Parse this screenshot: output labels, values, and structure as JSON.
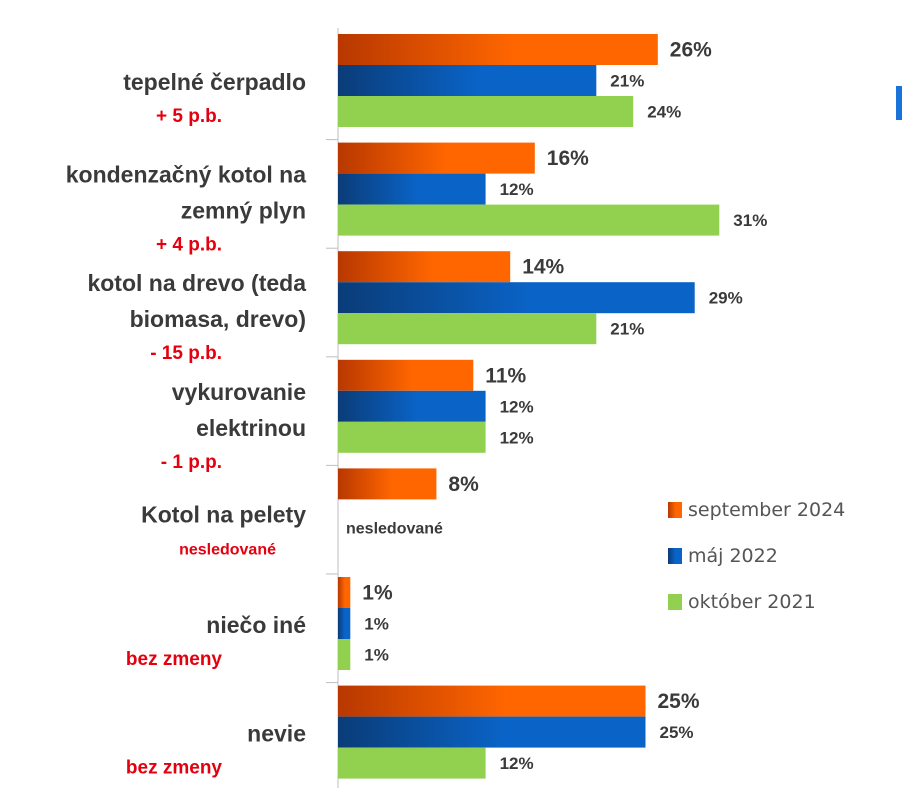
{
  "chart_data": {
    "type": "bar",
    "orientation": "horizontal",
    "categories": [
      {
        "lines": [
          "tepelné čerpadlo"
        ],
        "change": "+ 5 p.b."
      },
      {
        "lines": [
          "kondenzačný kotol na",
          "zemný plyn"
        ],
        "change": "+ 4 p.b."
      },
      {
        "lines": [
          "kotol na drevo (teda",
          "biomasa, drevo)"
        ],
        "change": "- 15 p.b."
      },
      {
        "lines": [
          "vykurovanie",
          "elektrinou"
        ],
        "change": "- 1 p.p."
      },
      {
        "lines": [
          "Kotol na pelety"
        ],
        "change": "nesledované"
      },
      {
        "lines": [
          "niečo iné"
        ],
        "change": "bez zmeny"
      },
      {
        "lines": [
          "nevie"
        ],
        "change": "bez zmeny"
      }
    ],
    "series": [
      {
        "name": "september 2024",
        "color": "#ff6600",
        "values": [
          26,
          16,
          14,
          11,
          8,
          1,
          25
        ],
        "labels": [
          "26%",
          "16%",
          "14%",
          "11%",
          "8%",
          "1%",
          "25%"
        ]
      },
      {
        "name": "máj 2022",
        "color": "#0a64c8",
        "values": [
          21,
          12,
          29,
          12,
          null,
          1,
          25
        ],
        "labels": [
          "21%",
          "12%",
          "29%",
          "12%",
          "",
          "1%",
          "25%"
        ]
      },
      {
        "name": "október 2021",
        "color": "#92d050",
        "values": [
          24,
          31,
          21,
          12,
          null,
          1,
          12
        ],
        "labels": [
          "24%",
          "31%",
          "21%",
          "12%",
          "",
          "1%",
          "12%"
        ]
      }
    ],
    "missing_note": "nesledované",
    "legend_position": "right",
    "grid": false
  }
}
